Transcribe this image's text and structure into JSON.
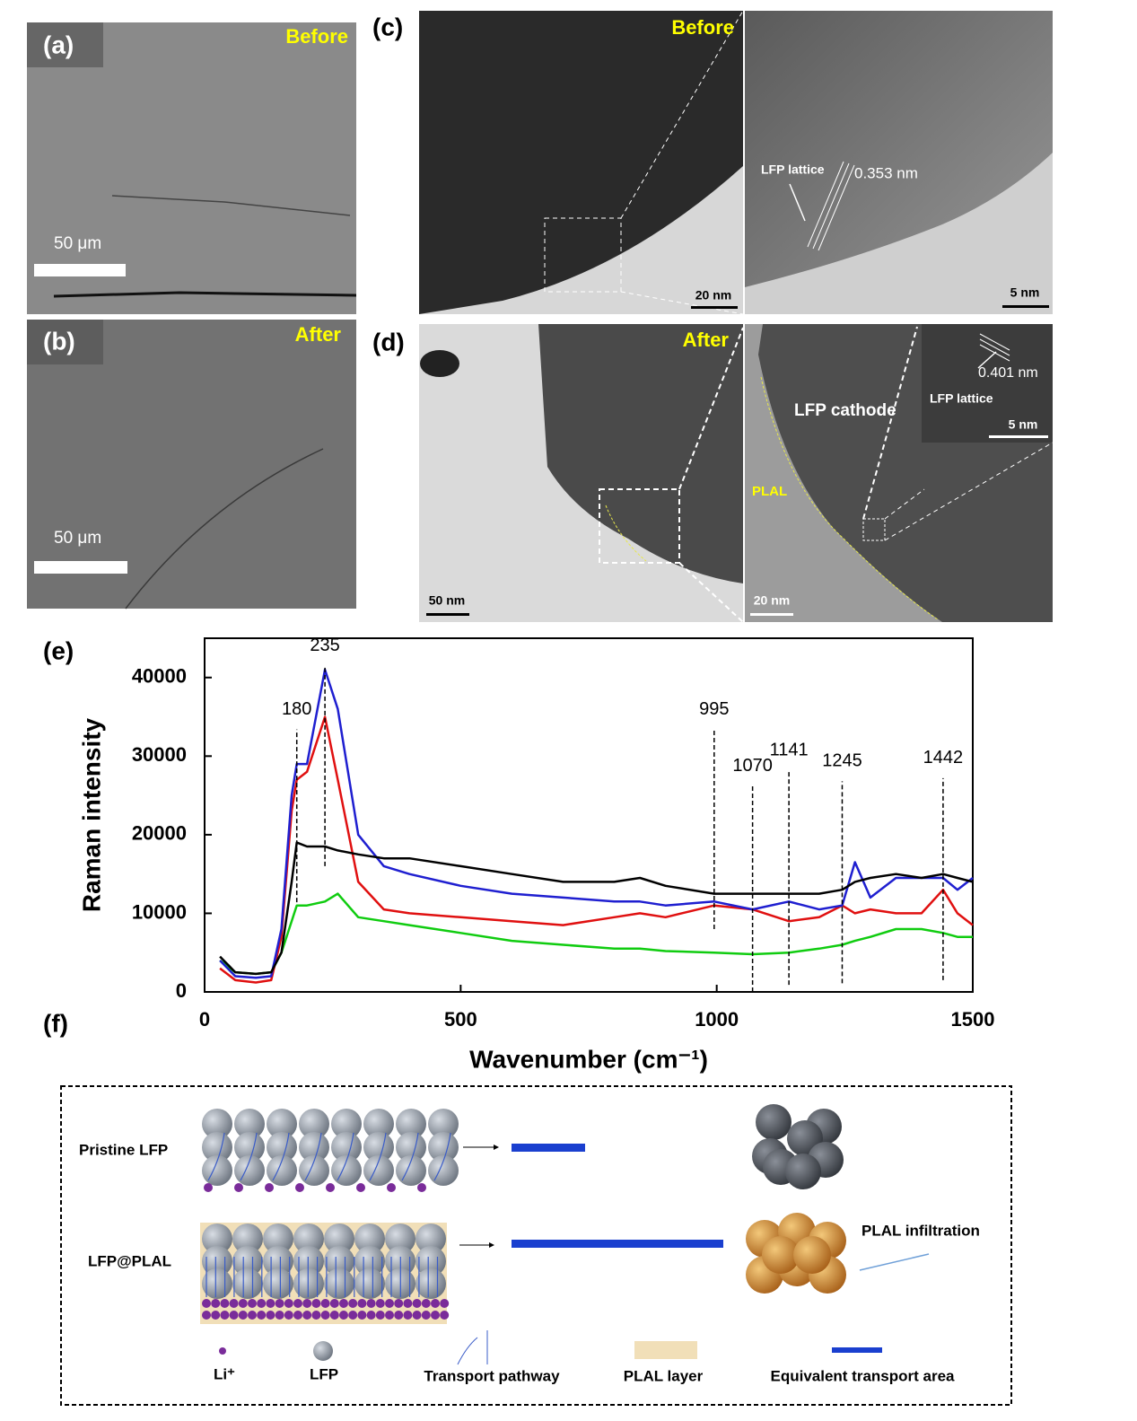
{
  "panels": {
    "a": {
      "label": "(a)",
      "tag": "Before",
      "scale": "50 μm"
    },
    "b": {
      "label": "(b)",
      "tag": "After",
      "scale": "50 μm"
    },
    "c": {
      "label": "(c)",
      "tag": "Before",
      "scale_left": "20 nm",
      "scale_right": "5 nm",
      "lattice": "LFP lattice",
      "spacing": "0.353 nm"
    },
    "d": {
      "label": "(d)",
      "tag": "After",
      "scale_left": "50 nm",
      "scale_right": "20 nm",
      "scale_inset": "5 nm",
      "cathode": "LFP cathode",
      "layer": "PLAL",
      "lattice": "LFP lattice",
      "spacing": "0.401 nm"
    },
    "e": {
      "label": "(e)"
    },
    "f": {
      "label": "(f)"
    }
  },
  "chart_data": {
    "type": "line",
    "xlabel": "Wavenumber (cm⁻¹)",
    "ylabel": "Raman intensity",
    "x": [
      30,
      60,
      100,
      130,
      150,
      170,
      180,
      200,
      235,
      260,
      300,
      350,
      400,
      500,
      600,
      700,
      800,
      850,
      900,
      995,
      1070,
      1141,
      1200,
      1245,
      1270,
      1300,
      1350,
      1400,
      1442,
      1470,
      1500
    ],
    "series": [
      {
        "color": "#10cc10",
        "values": [
          4000,
          2500,
          2300,
          2500,
          5000,
          9000,
          11000,
          11000,
          11500,
          12500,
          9500,
          9000,
          8500,
          7500,
          6500,
          6000,
          5500,
          5500,
          5200,
          5000,
          4800,
          5000,
          5500,
          6000,
          6500,
          7000,
          8000,
          8000,
          7500,
          7000,
          7000
        ]
      },
      {
        "color": "#e01010",
        "values": [
          3000,
          1500,
          1200,
          1500,
          7000,
          23000,
          27000,
          28000,
          35000,
          27000,
          14000,
          10500,
          10000,
          9500,
          9000,
          8500,
          9500,
          10000,
          9500,
          11000,
          10500,
          9000,
          9500,
          11000,
          10000,
          10500,
          10000,
          10000,
          13000,
          10000,
          8500
        ]
      },
      {
        "color": "#1f1fd0",
        "values": [
          4000,
          2000,
          1800,
          2000,
          8000,
          25000,
          29000,
          29000,
          41000,
          36000,
          20000,
          16000,
          15000,
          13500,
          12500,
          12000,
          11500,
          11500,
          11000,
          11500,
          10500,
          11500,
          10500,
          11000,
          16500,
          12000,
          14500,
          14500,
          14500,
          13000,
          14500
        ]
      },
      {
        "color": "#000000",
        "values": [
          4500,
          2500,
          2300,
          2500,
          5000,
          14000,
          19000,
          18500,
          18500,
          18000,
          17500,
          17000,
          17000,
          16000,
          15000,
          14000,
          14000,
          14500,
          13500,
          12500,
          12500,
          12500,
          12500,
          13000,
          14000,
          14500,
          15000,
          14500,
          15000,
          14500,
          14000
        ]
      }
    ],
    "annotations": [
      {
        "text": "180",
        "x": 180,
        "y_range": [
          11400,
          33400
        ]
      },
      {
        "text": "235",
        "x": 235,
        "y_range": [
          16000,
          41500
        ]
      },
      {
        "text": "995",
        "x": 995,
        "y_range": [
          8000,
          33400
        ]
      },
      {
        "text": "1070",
        "x": 1070,
        "y_range": [
          0,
          26200
        ]
      },
      {
        "text": "1141",
        "x": 1141,
        "y_range": [
          900,
          28200
        ]
      },
      {
        "text": "1245",
        "x": 1245,
        "y_range": [
          1100,
          26800
        ]
      },
      {
        "text": "1442",
        "x": 1442,
        "y_range": [
          1500,
          27200
        ]
      }
    ],
    "xlim": [
      0,
      1500
    ],
    "ylim": [
      0,
      45000
    ],
    "xticks": [
      0,
      500,
      1000,
      1500
    ],
    "yticks": [
      0,
      10000,
      20000,
      30000,
      40000
    ],
    "grid": false
  },
  "diagram": {
    "rows": [
      "Pristine LFP",
      "LFP@PLAL"
    ],
    "callout": "PLAL infiltration",
    "legend": [
      "Li⁺",
      "LFP",
      "Transport pathway",
      "PLAL layer",
      "Equivalent transport area"
    ]
  }
}
